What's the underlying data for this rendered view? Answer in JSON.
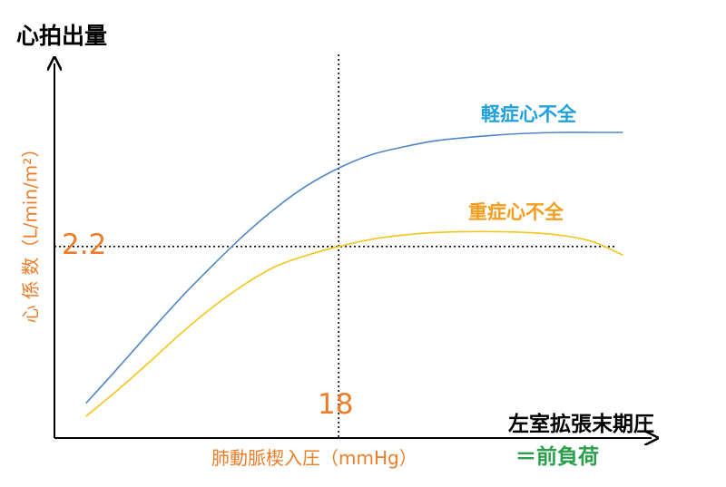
{
  "title": "心拍出量",
  "yaxis_label": "心 係 数（L/min/m²）",
  "xaxis_label": "肺動脈楔入圧（mmHg）",
  "xaxis_right_label": "左室拡張末期圧",
  "xaxis_right_sublabel": "＝前負荷",
  "chart_data": {
    "type": "line",
    "title": "心拍出量",
    "xlabel": "肺動脈楔入圧（mmHg）",
    "ylabel": "心 係 数（L/min/m²）",
    "grid": false,
    "reference_lines": [
      {
        "axis": "x",
        "value": 18,
        "label": "18"
      },
      {
        "axis": "y",
        "value": 2.2,
        "label": "2.2"
      }
    ],
    "series": [
      {
        "name": "軽症心不全",
        "color": "#4f86c6",
        "label_color": "#1fa0dc",
        "x": [
          2,
          4,
          6,
          8,
          10,
          12,
          14,
          16,
          18,
          20,
          22,
          24,
          26,
          28,
          30,
          32,
          34,
          36
        ],
        "y": [
          0.4,
          0.8,
          1.21,
          1.61,
          1.98,
          2.33,
          2.64,
          2.9,
          3.1,
          3.25,
          3.34,
          3.41,
          3.45,
          3.48,
          3.5,
          3.51,
          3.51,
          3.51
        ]
      },
      {
        "name": "重症心不全",
        "color": "#f5c518",
        "label_color": "#f59c1a",
        "x": [
          2,
          4,
          6,
          8,
          10,
          12,
          14,
          16,
          18,
          20,
          22,
          24,
          26,
          28,
          30,
          32,
          34,
          36
        ],
        "y": [
          0.25,
          0.55,
          0.87,
          1.2,
          1.5,
          1.76,
          1.97,
          2.1,
          2.2,
          2.28,
          2.33,
          2.36,
          2.37,
          2.37,
          2.36,
          2.33,
          2.26,
          2.1
        ]
      }
    ]
  }
}
